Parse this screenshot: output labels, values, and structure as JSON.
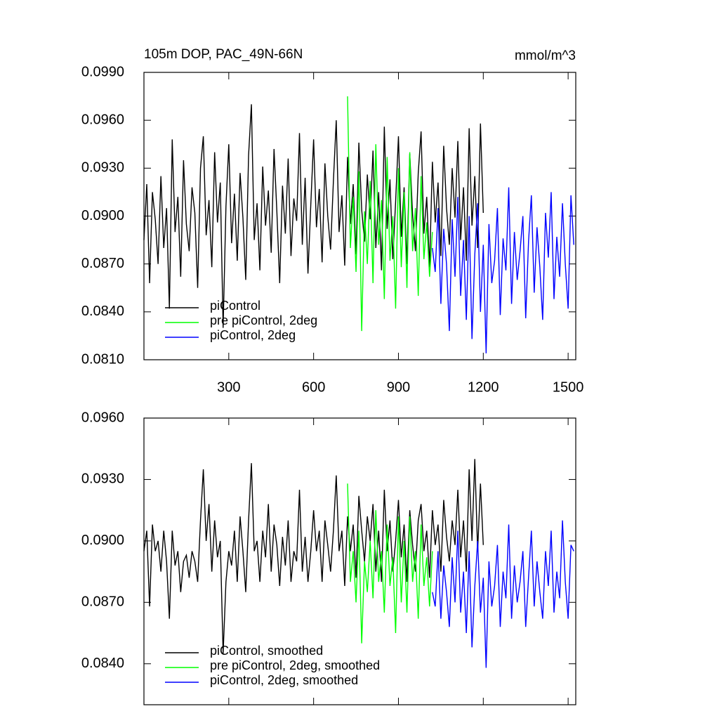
{
  "chart_data": [
    {
      "type": "line",
      "title": "105m DOP, PAC_49N-66N",
      "units": "mmol/m^3",
      "xlim": [
        0,
        1527
      ],
      "ylim": [
        0.081,
        0.099
      ],
      "xticks": [
        300,
        600,
        900,
        1200,
        1500
      ],
      "yticks": [
        {
          "value": 0.081,
          "label": "0.0810"
        },
        {
          "value": 0.084,
          "label": "0.0840"
        },
        {
          "value": 0.087,
          "label": "0.0870"
        },
        {
          "value": 0.09,
          "label": "0.0900"
        },
        {
          "value": 0.093,
          "label": "0.0930"
        },
        {
          "value": 0.096,
          "label": "0.0960"
        },
        {
          "value": 0.099,
          "label": "0.0990"
        }
      ],
      "legend": "lower left",
      "series": [
        {
          "name": "piControl",
          "color": "#000000",
          "x": [
            0,
            10,
            20,
            30,
            40,
            50,
            60,
            70,
            80,
            90,
            100,
            110,
            120,
            130,
            140,
            150,
            160,
            170,
            180,
            190,
            200,
            210,
            220,
            230,
            240,
            250,
            260,
            270,
            280,
            290,
            300,
            310,
            320,
            330,
            340,
            350,
            360,
            370,
            380,
            390,
            400,
            410,
            420,
            430,
            440,
            450,
            460,
            470,
            480,
            490,
            500,
            510,
            520,
            530,
            540,
            550,
            560,
            570,
            580,
            590,
            600,
            610,
            620,
            630,
            640,
            650,
            660,
            670,
            680,
            690,
            700,
            710,
            720,
            730,
            740,
            750,
            760,
            770,
            780,
            790,
            800,
            810,
            820,
            830,
            840,
            850,
            860,
            870,
            880,
            890,
            900,
            910,
            920,
            930,
            940,
            950,
            960,
            970,
            980,
            990,
            1000,
            1010,
            1020,
            1030,
            1040,
            1050,
            1060,
            1070,
            1080,
            1090,
            1100,
            1110,
            1120,
            1130,
            1140,
            1150,
            1160,
            1170,
            1180,
            1190,
            1200
          ],
          "values": [
            0.0885,
            0.092,
            0.0858,
            0.0915,
            0.0898,
            0.087,
            0.0925,
            0.088,
            0.0905,
            0.0842,
            0.0948,
            0.089,
            0.0912,
            0.0862,
            0.0935,
            0.0895,
            0.0878,
            0.0918,
            0.0902,
            0.0855,
            0.093,
            0.095,
            0.0888,
            0.091,
            0.0868,
            0.094,
            0.0896,
            0.0921,
            0.083,
            0.0906,
            0.0945,
            0.0883,
            0.0914,
            0.0872,
            0.0927,
            0.0899,
            0.086,
            0.0938,
            0.097,
            0.0885,
            0.0908,
            0.0866,
            0.0931,
            0.0894,
            0.0916,
            0.0877,
            0.0942,
            0.0903,
            0.0858,
            0.0919,
            0.0889,
            0.0936,
            0.0875,
            0.0911,
            0.0897,
            0.0952,
            0.0882,
            0.0924,
            0.0864,
            0.0907,
            0.0948,
            0.0893,
            0.0917,
            0.0871,
            0.0933,
            0.09,
            0.0879,
            0.0922,
            0.096,
            0.089,
            0.0913,
            0.0869,
            0.0937,
            0.0895,
            0.092,
            0.0876,
            0.0946,
            0.0904,
            0.0884,
            0.0926,
            0.0898,
            0.0941,
            0.088,
            0.0915,
            0.0866,
            0.0956,
            0.0892,
            0.0923,
            0.0873,
            0.0909,
            0.095,
            0.0887,
            0.0918,
            0.087,
            0.0939,
            0.0901,
            0.0878,
            0.0927,
            0.0953,
            0.0889,
            0.0912,
            0.0868,
            0.0934,
            0.0896,
            0.0921,
            0.0875,
            0.0944,
            0.0905,
            0.0882,
            0.093,
            0.0899,
            0.0947,
            0.0885,
            0.0918,
            0.0872,
            0.0955,
            0.0894,
            0.0925,
            0.088,
            0.0958,
            0.0902
          ]
        },
        {
          "name": "pre piControl, 2deg",
          "color": "#00ff00",
          "x": [
            720,
            730,
            740,
            750,
            760,
            770,
            780,
            790,
            800,
            810,
            820,
            830,
            840,
            850,
            860,
            870,
            880,
            890,
            900,
            910,
            920,
            930,
            940,
            950,
            960,
            970,
            980,
            990,
            1000,
            1010,
            1020
          ],
          "values": [
            0.0975,
            0.088,
            0.0912,
            0.0865,
            0.0928,
            0.0828,
            0.0903,
            0.087,
            0.0922,
            0.0858,
            0.0945,
            0.0882,
            0.091,
            0.0848,
            0.0937,
            0.0872,
            0.09,
            0.0842,
            0.093,
            0.0868,
            0.0915,
            0.0855,
            0.094,
            0.0878,
            0.0905,
            0.085,
            0.0925,
            0.0873,
            0.0896,
            0.0862,
            0.089
          ]
        },
        {
          "name": "piControl, 2deg",
          "color": "#0000ff",
          "x": [
            1020,
            1030,
            1040,
            1050,
            1060,
            1070,
            1080,
            1090,
            1100,
            1110,
            1120,
            1130,
            1140,
            1150,
            1160,
            1170,
            1180,
            1190,
            1200,
            1210,
            1220,
            1230,
            1240,
            1250,
            1260,
            1270,
            1280,
            1290,
            1300,
            1310,
            1320,
            1330,
            1340,
            1350,
            1360,
            1370,
            1380,
            1390,
            1400,
            1410,
            1420,
            1430,
            1440,
            1450,
            1460,
            1470,
            1480,
            1490,
            1500,
            1510,
            1520
          ],
          "values": [
            0.088,
            0.0865,
            0.0905,
            0.0845,
            0.0892,
            0.087,
            0.0828,
            0.0898,
            0.0862,
            0.0912,
            0.085,
            0.0885,
            0.0835,
            0.09,
            0.0823,
            0.0876,
            0.0908,
            0.084,
            0.0882,
            0.0814,
            0.0895,
            0.0858,
            0.0872,
            0.0905,
            0.0838,
            0.0886,
            0.0866,
            0.0918,
            0.0845,
            0.089,
            0.086,
            0.0878,
            0.09,
            0.0836,
            0.0884,
            0.0913,
            0.0852,
            0.0893,
            0.0868,
            0.0835,
            0.0902,
            0.0874,
            0.0915,
            0.0848,
            0.0887,
            0.0862,
            0.0908,
            0.087,
            0.0842,
            0.0913,
            0.0882
          ]
        }
      ]
    },
    {
      "type": "line",
      "xlim": [
        0,
        1527
      ],
      "ylim": [
        0.082,
        0.096
      ],
      "xticks": [
        300,
        600,
        900,
        1200,
        1500
      ],
      "yticks": [
        {
          "value": 0.084,
          "label": "0.0840"
        },
        {
          "value": 0.087,
          "label": "0.0870"
        },
        {
          "value": 0.09,
          "label": "0.0900"
        },
        {
          "value": 0.093,
          "label": "0.0930"
        },
        {
          "value": 0.096,
          "label": "0.0960"
        }
      ],
      "legend": "lower left",
      "series": [
        {
          "name": "piControl, smoothed",
          "color": "#000000",
          "x": [
            0,
            10,
            20,
            30,
            40,
            50,
            60,
            70,
            80,
            90,
            100,
            110,
            120,
            130,
            140,
            150,
            160,
            170,
            180,
            190,
            200,
            210,
            220,
            230,
            240,
            250,
            260,
            270,
            280,
            290,
            300,
            310,
            320,
            330,
            340,
            350,
            360,
            370,
            380,
            390,
            400,
            410,
            420,
            430,
            440,
            450,
            460,
            470,
            480,
            490,
            500,
            510,
            520,
            530,
            540,
            550,
            560,
            570,
            580,
            590,
            600,
            610,
            620,
            630,
            640,
            650,
            660,
            670,
            680,
            690,
            700,
            710,
            720,
            730,
            740,
            750,
            760,
            770,
            780,
            790,
            800,
            810,
            820,
            830,
            840,
            850,
            860,
            870,
            880,
            890,
            900,
            910,
            920,
            930,
            940,
            950,
            960,
            970,
            980,
            990,
            1000,
            1010,
            1020,
            1030,
            1040,
            1050,
            1060,
            1070,
            1080,
            1090,
            1100,
            1110,
            1120,
            1130,
            1140,
            1150,
            1160,
            1170,
            1180,
            1190,
            1200
          ],
          "values": [
            0.0895,
            0.0905,
            0.0868,
            0.0908,
            0.0895,
            0.09,
            0.0885,
            0.0905,
            0.089,
            0.0862,
            0.0905,
            0.0888,
            0.0895,
            0.0875,
            0.089,
            0.0893,
            0.0882,
            0.0895,
            0.089,
            0.088,
            0.091,
            0.0935,
            0.09,
            0.0918,
            0.0885,
            0.091,
            0.0892,
            0.09,
            0.0845,
            0.088,
            0.0895,
            0.0888,
            0.0905,
            0.088,
            0.0912,
            0.0895,
            0.0875,
            0.091,
            0.0938,
            0.0895,
            0.09,
            0.088,
            0.0905,
            0.0892,
            0.0918,
            0.0885,
            0.0908,
            0.0898,
            0.0878,
            0.0902,
            0.0888,
            0.091,
            0.088,
            0.0895,
            0.089,
            0.0925,
            0.0885,
            0.0902,
            0.088,
            0.0895,
            0.0915,
            0.0895,
            0.0905,
            0.088,
            0.091,
            0.0898,
            0.0885,
            0.0905,
            0.0932,
            0.0895,
            0.0905,
            0.0878,
            0.0912,
            0.0895,
            0.0908,
            0.0882,
            0.0922,
            0.0905,
            0.089,
            0.0912,
            0.09,
            0.0918,
            0.0885,
            0.0905,
            0.088,
            0.0925,
            0.0895,
            0.091,
            0.0885,
            0.09,
            0.092,
            0.0892,
            0.0908,
            0.088,
            0.0915,
            0.0898,
            0.0885,
            0.091,
            0.0918,
            0.0895,
            0.0905,
            0.0882,
            0.0915,
            0.0898,
            0.0908,
            0.0885,
            0.092,
            0.0902,
            0.089,
            0.091,
            0.0898,
            0.0925,
            0.0892,
            0.091,
            0.0885,
            0.0935,
            0.09,
            0.094,
            0.0895,
            0.0928,
            0.0898
          ]
        },
        {
          "name": "pre piControl, 2deg, smoothed",
          "color": "#00ff00",
          "x": [
            720,
            730,
            740,
            750,
            760,
            770,
            780,
            790,
            800,
            810,
            820,
            830,
            840,
            850,
            860,
            870,
            880,
            890,
            900,
            910,
            920,
            930,
            940,
            950,
            960,
            970,
            980,
            990,
            1000,
            1010,
            1020
          ],
          "values": [
            0.0928,
            0.088,
            0.0895,
            0.087,
            0.0905,
            0.085,
            0.089,
            0.0875,
            0.09,
            0.0872,
            0.0915,
            0.088,
            0.0895,
            0.0865,
            0.0908,
            0.0878,
            0.0892,
            0.0855,
            0.0912,
            0.087,
            0.09,
            0.0865,
            0.0912,
            0.088,
            0.0895,
            0.0862,
            0.0908,
            0.0878,
            0.0892,
            0.0868,
            0.0895
          ]
        },
        {
          "name": "piControl, 2deg, smoothed",
          "color": "#0000ff",
          "x": [
            1020,
            1030,
            1040,
            1050,
            1060,
            1070,
            1080,
            1090,
            1100,
            1110,
            1120,
            1130,
            1140,
            1150,
            1160,
            1170,
            1180,
            1190,
            1200,
            1210,
            1220,
            1230,
            1240,
            1250,
            1260,
            1270,
            1280,
            1290,
            1300,
            1310,
            1320,
            1330,
            1340,
            1350,
            1360,
            1370,
            1380,
            1390,
            1400,
            1410,
            1420,
            1430,
            1440,
            1450,
            1460,
            1470,
            1480,
            1490,
            1500,
            1510,
            1520
          ],
          "values": [
            0.0875,
            0.0868,
            0.0895,
            0.0862,
            0.0888,
            0.0875,
            0.0858,
            0.0892,
            0.087,
            0.0905,
            0.0865,
            0.0885,
            0.0855,
            0.0895,
            0.0848,
            0.0878,
            0.09,
            0.0865,
            0.0882,
            0.0838,
            0.089,
            0.0868,
            0.0878,
            0.0898,
            0.0858,
            0.0885,
            0.0872,
            0.0908,
            0.0862,
            0.0888,
            0.087,
            0.088,
            0.0895,
            0.0858,
            0.0882,
            0.0905,
            0.0868,
            0.089,
            0.0875,
            0.0862,
            0.0895,
            0.0878,
            0.0905,
            0.0865,
            0.0885,
            0.0872,
            0.091,
            0.088,
            0.0862,
            0.0898,
            0.0895
          ]
        }
      ]
    }
  ]
}
